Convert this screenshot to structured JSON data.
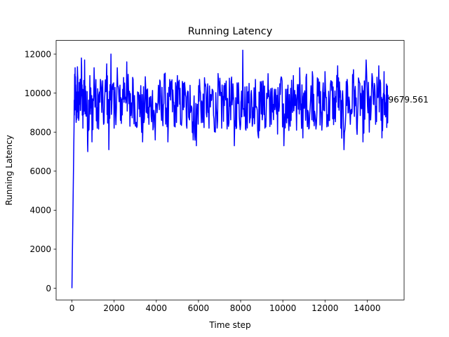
{
  "chart_data": {
    "type": "line",
    "title": "Running Latency",
    "xlabel": "Time step",
    "ylabel": "Running Latency",
    "xlim": [
      -750,
      15750
    ],
    "ylim": [
      -600,
      12700
    ],
    "xticks": [
      0,
      2000,
      4000,
      6000,
      8000,
      10000,
      12000,
      14000
    ],
    "xtick_labels": [
      "0",
      "2000",
      "4000",
      "6000",
      "8000",
      "10000",
      "12000",
      "14000"
    ],
    "yticks": [
      0,
      2000,
      4000,
      6000,
      8000,
      10000,
      12000
    ],
    "ytick_labels": [
      "0",
      "2000",
      "4000",
      "6000",
      "8000",
      "10000",
      "12000"
    ],
    "grid": false,
    "series": [
      {
        "color": "#0000ff",
        "x_start": 0,
        "x_end": 15000,
        "start_value": 0,
        "mean": 9500,
        "min": 7000,
        "max": 12200,
        "points": [
          [
            0,
            0
          ],
          [
            100,
            8300
          ],
          [
            150,
            11300
          ],
          [
            200,
            8500
          ],
          [
            260,
            11350
          ],
          [
            320,
            8600
          ],
          [
            380,
            10400
          ],
          [
            450,
            11800
          ],
          [
            520,
            8200
          ],
          [
            600,
            11700
          ],
          [
            680,
            9000
          ],
          [
            750,
            7000
          ],
          [
            850,
            10900
          ],
          [
            950,
            7500
          ],
          [
            1050,
            11300
          ],
          [
            1200,
            8200
          ],
          [
            1350,
            10700
          ],
          [
            1500,
            8400
          ],
          [
            1650,
            11500
          ],
          [
            1750,
            7100
          ],
          [
            1850,
            12000
          ],
          [
            2000,
            8200
          ],
          [
            2150,
            11300
          ],
          [
            2300,
            8600
          ],
          [
            2450,
            10800
          ],
          [
            2600,
            11600
          ],
          [
            2750,
            8300
          ],
          [
            2900,
            10700
          ],
          [
            3050,
            8500
          ],
          [
            3200,
            9900
          ],
          [
            3350,
            7500
          ],
          [
            3500,
            10200
          ],
          [
            3650,
            8400
          ],
          [
            3800,
            9600
          ],
          [
            3950,
            7600
          ],
          [
            4100,
            10400
          ],
          [
            4250,
            8600
          ],
          [
            4400,
            10800
          ],
          [
            4550,
            7500
          ],
          [
            4700,
            10600
          ],
          [
            4850,
            8300
          ],
          [
            5000,
            10900
          ],
          [
            5150,
            8400
          ],
          [
            5300,
            10500
          ],
          [
            5450,
            8200
          ],
          [
            5600,
            10400
          ],
          [
            5750,
            7600
          ],
          [
            5900,
            7300
          ],
          [
            6050,
            10700
          ],
          [
            6200,
            8500
          ],
          [
            6350,
            10300
          ],
          [
            6500,
            8200
          ],
          [
            6650,
            10200
          ],
          [
            6800,
            8000
          ],
          [
            6950,
            10600
          ],
          [
            7100,
            8200
          ],
          [
            7250,
            10500
          ],
          [
            7400,
            8600
          ],
          [
            7550,
            10600
          ],
          [
            7700,
            7300
          ],
          [
            7850,
            10300
          ],
          [
            8000,
            8400
          ],
          [
            8100,
            12200
          ],
          [
            8250,
            8100
          ],
          [
            8400,
            10500
          ],
          [
            8550,
            8300
          ],
          [
            8700,
            10700
          ],
          [
            8850,
            7700
          ],
          [
            9000,
            10600
          ],
          [
            9150,
            8200
          ],
          [
            9300,
            11000
          ],
          [
            9450,
            8400
          ],
          [
            9600,
            10200
          ],
          [
            9750,
            7900
          ],
          [
            9900,
            10700
          ],
          [
            10050,
            7300
          ],
          [
            10200,
            10200
          ],
          [
            10350,
            8300
          ],
          [
            10500,
            10900
          ],
          [
            10650,
            8100
          ],
          [
            10800,
            11300
          ],
          [
            10950,
            7700
          ],
          [
            11100,
            10800
          ],
          [
            11250,
            8200
          ],
          [
            11400,
            11100
          ],
          [
            11550,
            8600
          ],
          [
            11700,
            10400
          ],
          [
            11850,
            8100
          ],
          [
            12000,
            11100
          ],
          [
            12150,
            8300
          ],
          [
            12300,
            10600
          ],
          [
            12450,
            8700
          ],
          [
            12600,
            11400
          ],
          [
            12750,
            8200
          ],
          [
            12900,
            7100
          ],
          [
            13050,
            10700
          ],
          [
            13200,
            8400
          ],
          [
            13350,
            11200
          ],
          [
            13500,
            8200
          ],
          [
            13650,
            10500
          ],
          [
            13800,
            7500
          ],
          [
            13950,
            11700
          ],
          [
            14100,
            8000
          ],
          [
            14250,
            10800
          ],
          [
            14400,
            8400
          ],
          [
            14550,
            11400
          ],
          [
            14700,
            7700
          ],
          [
            14800,
            11100
          ],
          [
            14900,
            9000
          ],
          [
            15000,
            9680
          ]
        ]
      }
    ],
    "annotations": [
      {
        "text": "9679.561",
        "x": 15000,
        "y": 9679.561
      }
    ]
  }
}
